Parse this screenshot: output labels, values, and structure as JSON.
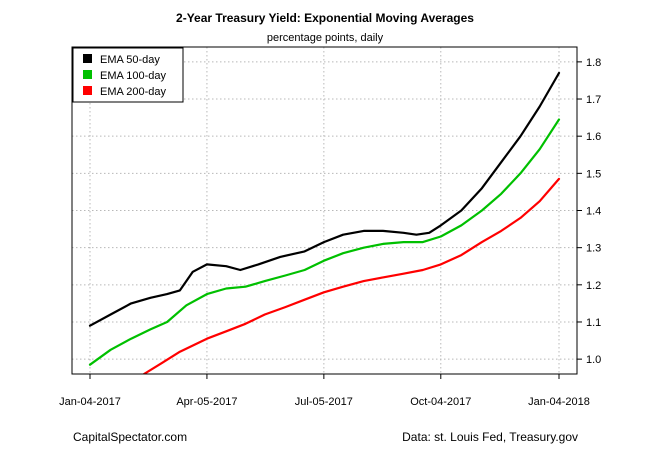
{
  "chart_data": {
    "type": "line",
    "title": "2-Year Treasury Yield: Exponential Moving Averages",
    "subtitle": "percentage points, daily",
    "xlabel": "",
    "ylabel": "",
    "x_ticks": [
      "Jan-04-2017",
      "Apr-05-2017",
      "Jul-05-2017",
      "Oct-04-2017",
      "Jan-04-2018"
    ],
    "x_range": [
      "2017-01-04",
      "2018-01-04"
    ],
    "ylim": [
      0.96,
      1.84
    ],
    "y_ticks": [
      1.0,
      1.1,
      1.2,
      1.3,
      1.4,
      1.5,
      1.6,
      1.7,
      1.8
    ],
    "y_axis_side": "right",
    "grid": true,
    "legend_position": "top-left",
    "series": [
      {
        "name": "EMA 50-day",
        "color": "#000000",
        "points": [
          [
            "2017-01-04",
            1.09
          ],
          [
            "2017-01-20",
            1.12
          ],
          [
            "2017-02-05",
            1.15
          ],
          [
            "2017-02-20",
            1.165
          ],
          [
            "2017-03-05",
            1.175
          ],
          [
            "2017-03-15",
            1.185
          ],
          [
            "2017-03-25",
            1.235
          ],
          [
            "2017-04-05",
            1.255
          ],
          [
            "2017-04-20",
            1.25
          ],
          [
            "2017-05-01",
            1.24
          ],
          [
            "2017-05-15",
            1.255
          ],
          [
            "2017-06-01",
            1.275
          ],
          [
            "2017-06-20",
            1.29
          ],
          [
            "2017-07-05",
            1.315
          ],
          [
            "2017-07-20",
            1.335
          ],
          [
            "2017-08-05",
            1.345
          ],
          [
            "2017-08-20",
            1.345
          ],
          [
            "2017-09-05",
            1.34
          ],
          [
            "2017-09-15",
            1.335
          ],
          [
            "2017-09-25",
            1.34
          ],
          [
            "2017-10-04",
            1.36
          ],
          [
            "2017-10-20",
            1.4
          ],
          [
            "2017-11-05",
            1.46
          ],
          [
            "2017-11-20",
            1.53
          ],
          [
            "2017-12-05",
            1.6
          ],
          [
            "2017-12-20",
            1.68
          ],
          [
            "2018-01-04",
            1.77
          ]
        ]
      },
      {
        "name": "EMA 100-day",
        "color": "#00c000",
        "points": [
          [
            "2017-01-04",
            0.985
          ],
          [
            "2017-01-20",
            1.025
          ],
          [
            "2017-02-05",
            1.055
          ],
          [
            "2017-02-20",
            1.08
          ],
          [
            "2017-03-05",
            1.1
          ],
          [
            "2017-03-20",
            1.145
          ],
          [
            "2017-04-05",
            1.175
          ],
          [
            "2017-04-20",
            1.19
          ],
          [
            "2017-05-05",
            1.195
          ],
          [
            "2017-05-20",
            1.21
          ],
          [
            "2017-06-05",
            1.225
          ],
          [
            "2017-06-20",
            1.24
          ],
          [
            "2017-07-05",
            1.265
          ],
          [
            "2017-07-20",
            1.285
          ],
          [
            "2017-08-05",
            1.3
          ],
          [
            "2017-08-20",
            1.31
          ],
          [
            "2017-09-05",
            1.315
          ],
          [
            "2017-09-20",
            1.315
          ],
          [
            "2017-10-04",
            1.33
          ],
          [
            "2017-10-20",
            1.36
          ],
          [
            "2017-11-05",
            1.4
          ],
          [
            "2017-11-20",
            1.445
          ],
          [
            "2017-12-05",
            1.5
          ],
          [
            "2017-12-20",
            1.565
          ],
          [
            "2018-01-04",
            1.645
          ]
        ]
      },
      {
        "name": "EMA 200-day",
        "color": "#ff0000",
        "points": [
          [
            "2017-02-15",
            0.96
          ],
          [
            "2017-03-01",
            0.99
          ],
          [
            "2017-03-15",
            1.02
          ],
          [
            "2017-04-05",
            1.055
          ],
          [
            "2017-04-20",
            1.075
          ],
          [
            "2017-05-05",
            1.095
          ],
          [
            "2017-05-20",
            1.12
          ],
          [
            "2017-06-05",
            1.14
          ],
          [
            "2017-06-20",
            1.16
          ],
          [
            "2017-07-05",
            1.18
          ],
          [
            "2017-07-20",
            1.195
          ],
          [
            "2017-08-05",
            1.21
          ],
          [
            "2017-08-20",
            1.22
          ],
          [
            "2017-09-05",
            1.23
          ],
          [
            "2017-09-20",
            1.24
          ],
          [
            "2017-10-04",
            1.255
          ],
          [
            "2017-10-20",
            1.28
          ],
          [
            "2017-11-05",
            1.315
          ],
          [
            "2017-11-20",
            1.345
          ],
          [
            "2017-12-05",
            1.38
          ],
          [
            "2017-12-20",
            1.425
          ],
          [
            "2018-01-04",
            1.485
          ]
        ]
      }
    ]
  },
  "footer": {
    "left": "CapitalSpectator.com",
    "right": "Data: st. Louis Fed, Treasury.gov"
  }
}
